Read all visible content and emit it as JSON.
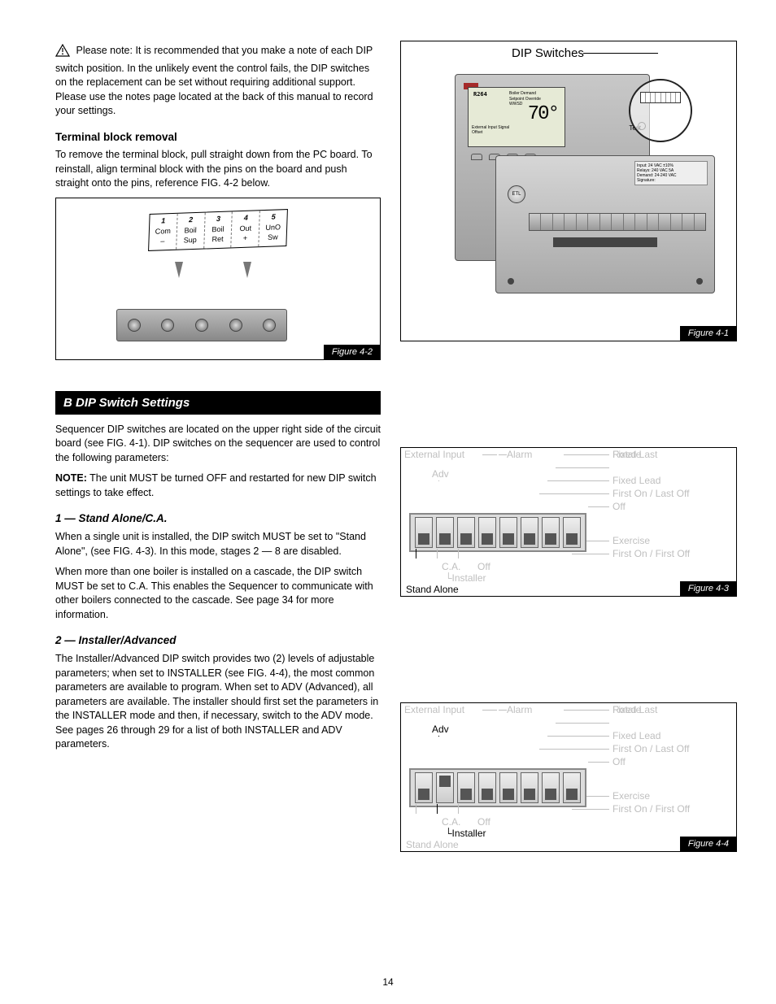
{
  "colors": {
    "black": "#000000",
    "gray": "#bfbfbf",
    "bg": "#ffffff"
  },
  "warning": {
    "para": "Please note: It is recommended that you make a note of each DIP switch position. In the unlikely event the control fails, the DIP switches on the replacement can be set without requiring additional support. Please use the notes page located at the back of this manual to record your settings."
  },
  "electrical_sub": {
    "title": "Terminal block removal",
    "para": "To remove the terminal block, pull straight down from the PC board. To reinstall, align terminal block with the pins on the board and push straight onto the pins, reference FIG. 4-2 below."
  },
  "dip_section_title": "B  DIP Switch Settings",
  "dip_intro": "Sequencer DIP switches are located on the upper right side of the circuit board (see FIG. 4-1). DIP switches on the sequencer are used to control the following parameters:",
  "dip_note": {
    "label": "NOTE:",
    "text": "The unit MUST be turned OFF and restarted for new DIP switch settings to take effect."
  },
  "dip_list_stand": "1 — Stand Alone/C.A.",
  "dip_para_stand1": "When a single unit is installed, the DIP switch MUST be set to \"Stand Alone\", (see FIG. 4-3). In this mode, stages 2 — 8 are disabled.",
  "dip_para_stand2": "When more than one boiler is installed on a cascade, the DIP switch MUST be set to C.A. This enables the Sequencer to communicate with other boilers connected to the cascade. See page 34 for more information.",
  "dip_list_inst": "2 — Installer/Advanced",
  "dip_para_inst": "The Installer/Advanced DIP switch provides two (2) levels of adjustable parameters; when set to INSTALLER (see FIG. 4-4), the most common parameters are available to program. When set to ADV (Advanced), all parameters are available. The installer should first set the parameters in the INSTALLER mode and then, if necessary, switch to the ADV mode. See pages 26 through 29 for a list of both INSTALLER and ADV parameters.",
  "fig41": {
    "title": "DIP Switches",
    "label": "Figure 4-1",
    "screen_temp": "70°",
    "screen_lines": [
      "Boiler Demand",
      "Setpoint Override",
      "WWSD",
      "",
      "External Input Signal",
      "Offset"
    ],
    "test_label": "Test"
  },
  "fig42": {
    "label": "Figure 4-2",
    "terminals": [
      {
        "n": "1",
        "t": "Com",
        "b": "–"
      },
      {
        "n": "2",
        "t": "Boil",
        "b": "Sup"
      },
      {
        "n": "3",
        "t": "Boil",
        "b": "Ret"
      },
      {
        "n": "4",
        "t": "Out",
        "b": "+"
      },
      {
        "n": "5",
        "t": "UnO",
        "b": "Sw"
      }
    ]
  },
  "fig43": {
    "label": "Figure 4-3"
  },
  "fig44": {
    "label": "Figure 4-4"
  },
  "dip_labels": {
    "ext": "External Input",
    "alarm": "Alarm",
    "rotate": "Rotate",
    "fixedlast": "Fixed Last",
    "fixedlead": "Fixed Lead",
    "fonloff": "First On / Last Off",
    "off_r": "Off",
    "exercise": "Exercise",
    "fonfoff": "First On / First Off",
    "adv": "Adv",
    "ca": "C.A.",
    "off_b": "Off",
    "installer": "Installer",
    "stand": "Stand Alone"
  },
  "fig43_switches": [
    "down",
    "down",
    "down",
    "down",
    "down",
    "down",
    "down",
    "down"
  ],
  "fig43_active": {
    "ext": false,
    "adv": false,
    "ca": false,
    "off_b": false,
    "installer": false,
    "stand": true,
    "alarm": false,
    "rotate": false,
    "fixedlast": false,
    "fixedlead": false,
    "fonloff": false,
    "off_r": false,
    "exercise": false,
    "fonfoff": false
  },
  "fig44_switches": [
    "down",
    "up",
    "down",
    "down",
    "down",
    "down",
    "down",
    "down"
  ],
  "fig44_active": {
    "ext": false,
    "adv": true,
    "ca": false,
    "off_b": false,
    "installer": true,
    "stand": false,
    "alarm": false,
    "rotate": false,
    "fixedlast": false,
    "fixedlead": false,
    "fonloff": false,
    "off_r": false,
    "exercise": false,
    "fonfoff": false
  },
  "page_number": "14"
}
